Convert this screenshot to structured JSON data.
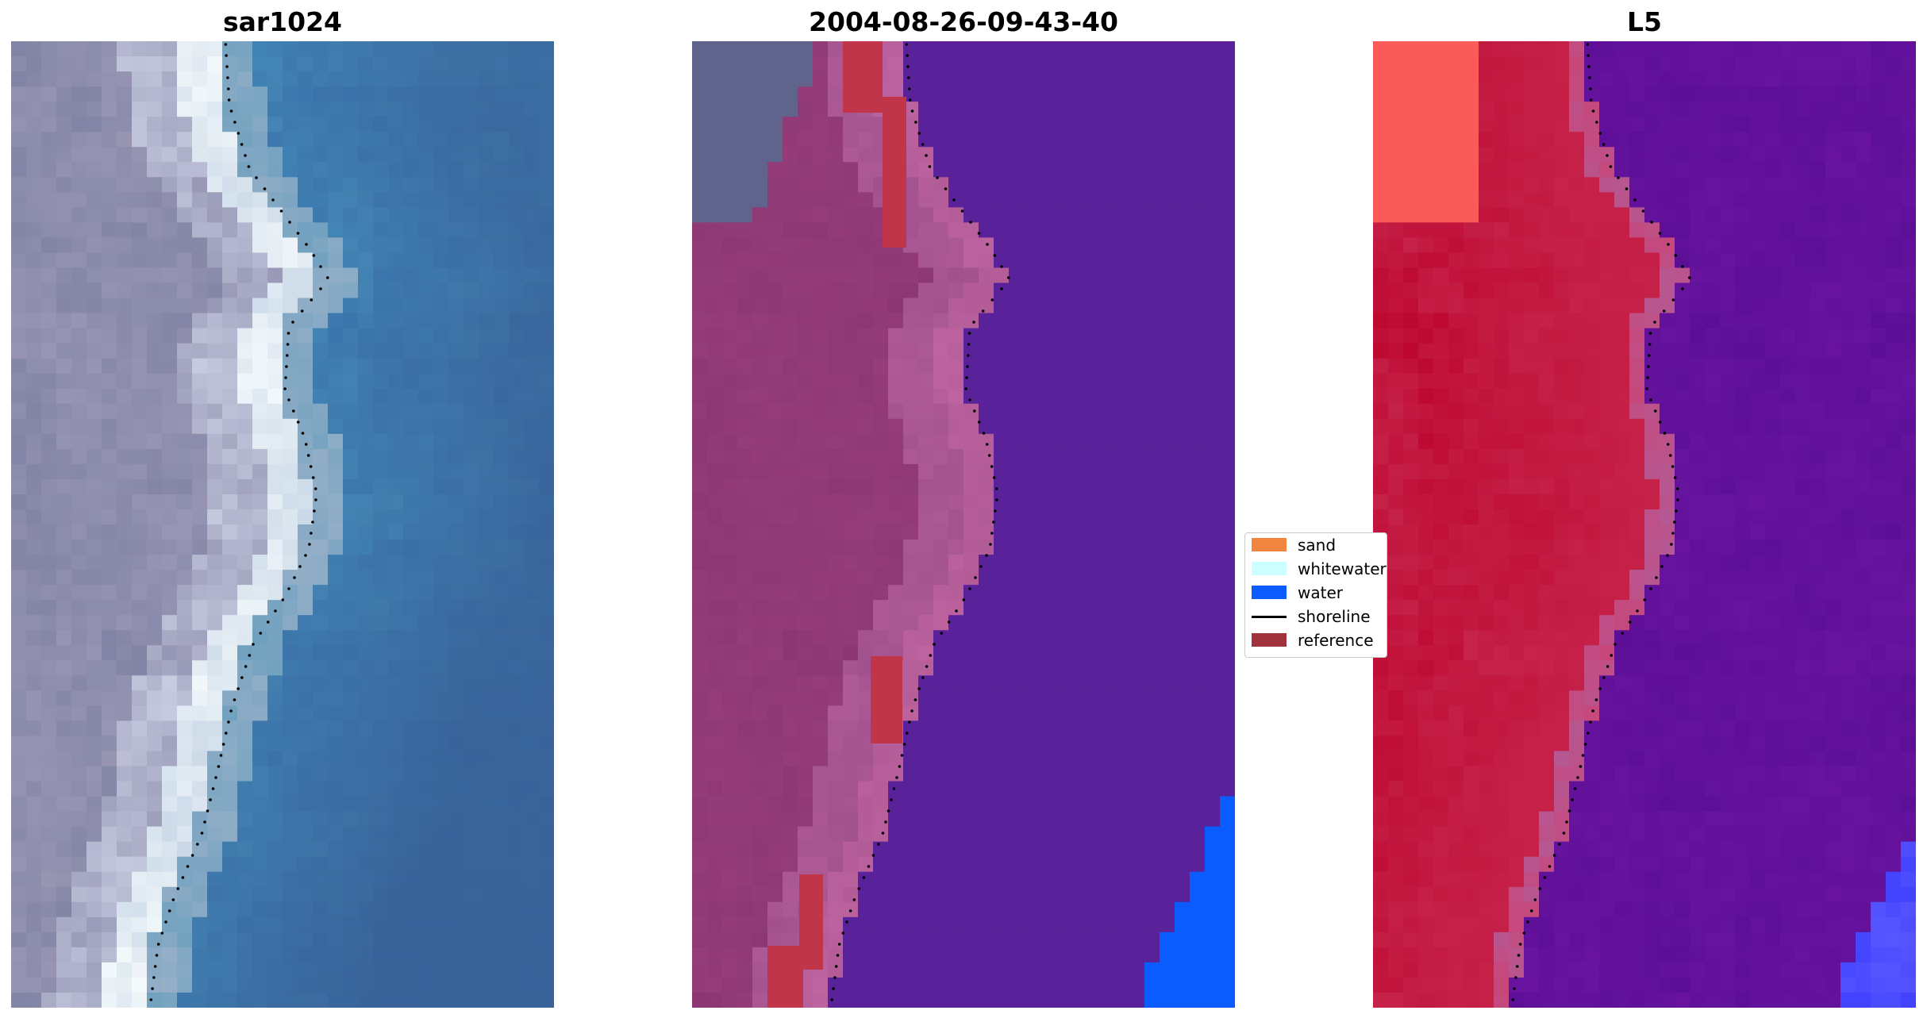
{
  "panels": [
    {
      "title": "sar1024",
      "style": "rgb"
    },
    {
      "title": "2004-08-26-09-43-40",
      "style": "classified"
    },
    {
      "title": "L5",
      "style": "index"
    }
  ],
  "legend": {
    "items": [
      {
        "label": "sand",
        "color": "#F28540",
        "kind": "patch"
      },
      {
        "label": "whitewater",
        "color": "#CCFFFF",
        "kind": "patch"
      },
      {
        "label": "water",
        "color": "#0A5CFF",
        "kind": "patch"
      },
      {
        "label": "shoreline",
        "color": "#000000",
        "kind": "line"
      },
      {
        "label": "reference",
        "color": "#A0323C",
        "kind": "patch"
      }
    ]
  },
  "colors": {
    "land_classified": "#923A77",
    "water_classified": "#5A229A",
    "water_blue": "#0A5CFF",
    "reference_red": "#C0354A",
    "index_red": "#C01436",
    "index_purple": "#6A14A0"
  }
}
